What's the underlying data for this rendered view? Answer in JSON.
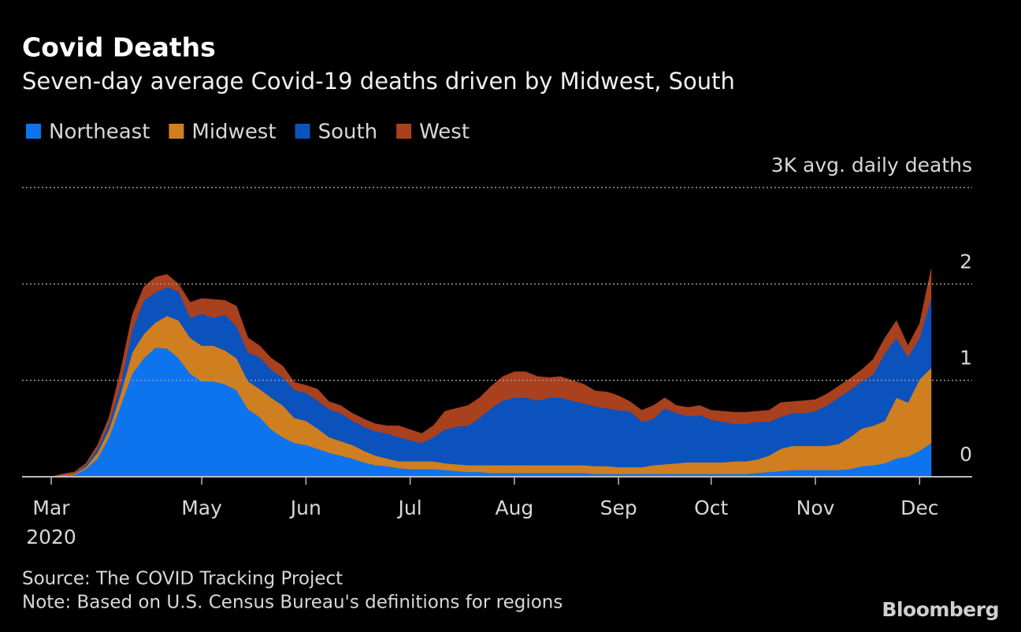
{
  "chart_data": {
    "type": "stacked_area",
    "title": "Covid Deaths",
    "subtitle": "Seven-day average Covid-19 deaths driven by Midwest, South",
    "categories": [
      "Mar",
      null,
      null,
      null,
      null,
      null,
      null,
      null,
      null,
      null,
      null,
      null,
      null,
      "May",
      null,
      null,
      null,
      null,
      null,
      null,
      null,
      null,
      "Jun",
      null,
      null,
      null,
      null,
      null,
      null,
      null,
      null,
      "Jul",
      null,
      null,
      null,
      null,
      null,
      null,
      null,
      null,
      "Aug",
      null,
      null,
      null,
      null,
      null,
      null,
      null,
      null,
      "Sep",
      null,
      null,
      null,
      null,
      null,
      null,
      null,
      "Oct",
      null,
      null,
      null,
      null,
      null,
      null,
      null,
      null,
      "Nov",
      null,
      null,
      null,
      null,
      null,
      null,
      null,
      null,
      "Dec",
      null
    ],
    "category_year": "2020",
    "series": [
      {
        "name": "Northeast",
        "color": "#0e74ee",
        "values": [
          0,
          0.01,
          0.02,
          0.08,
          0.19,
          0.41,
          0.74,
          1.07,
          1.23,
          1.34,
          1.33,
          1.23,
          1.07,
          0.99,
          0.99,
          0.96,
          0.9,
          0.7,
          0.62,
          0.49,
          0.41,
          0.35,
          0.33,
          0.29,
          0.25,
          0.22,
          0.19,
          0.15,
          0.12,
          0.11,
          0.09,
          0.08,
          0.08,
          0.08,
          0.07,
          0.06,
          0.05,
          0.05,
          0.04,
          0.04,
          0.04,
          0.04,
          0.04,
          0.04,
          0.04,
          0.04,
          0.04,
          0.03,
          0.03,
          0.03,
          0.03,
          0.03,
          0.03,
          0.03,
          0.03,
          0.03,
          0.03,
          0.03,
          0.03,
          0.03,
          0.03,
          0.04,
          0.05,
          0.06,
          0.07,
          0.07,
          0.07,
          0.07,
          0.07,
          0.08,
          0.11,
          0.12,
          0.14,
          0.19,
          0.21,
          0.27,
          0.35
        ]
      },
      {
        "name": "Midwest",
        "color": "#cf7f1f",
        "values": [
          0,
          0.01,
          0.01,
          0.02,
          0.06,
          0.08,
          0.12,
          0.22,
          0.25,
          0.26,
          0.34,
          0.39,
          0.37,
          0.37,
          0.37,
          0.35,
          0.33,
          0.29,
          0.29,
          0.33,
          0.33,
          0.26,
          0.25,
          0.21,
          0.16,
          0.15,
          0.14,
          0.12,
          0.1,
          0.08,
          0.07,
          0.08,
          0.08,
          0.08,
          0.07,
          0.07,
          0.07,
          0.07,
          0.08,
          0.08,
          0.08,
          0.08,
          0.08,
          0.08,
          0.08,
          0.08,
          0.08,
          0.08,
          0.08,
          0.07,
          0.07,
          0.07,
          0.09,
          0.1,
          0.11,
          0.12,
          0.12,
          0.12,
          0.12,
          0.13,
          0.13,
          0.14,
          0.17,
          0.23,
          0.25,
          0.25,
          0.25,
          0.25,
          0.27,
          0.33,
          0.39,
          0.41,
          0.44,
          0.63,
          0.56,
          0.74,
          0.78
        ]
      },
      {
        "name": "South",
        "color": "#0b52bd",
        "values": [
          0,
          0,
          0,
          0.02,
          0.04,
          0.06,
          0.1,
          0.23,
          0.35,
          0.31,
          0.3,
          0.3,
          0.21,
          0.33,
          0.29,
          0.37,
          0.33,
          0.3,
          0.33,
          0.29,
          0.29,
          0.29,
          0.29,
          0.29,
          0.29,
          0.29,
          0.25,
          0.25,
          0.25,
          0.26,
          0.25,
          0.22,
          0.19,
          0.25,
          0.35,
          0.39,
          0.41,
          0.49,
          0.59,
          0.67,
          0.7,
          0.7,
          0.67,
          0.7,
          0.7,
          0.67,
          0.64,
          0.62,
          0.6,
          0.59,
          0.58,
          0.47,
          0.48,
          0.58,
          0.52,
          0.48,
          0.49,
          0.44,
          0.42,
          0.39,
          0.39,
          0.39,
          0.35,
          0.33,
          0.34,
          0.34,
          0.36,
          0.42,
          0.48,
          0.49,
          0.49,
          0.53,
          0.7,
          0.62,
          0.47,
          0.43,
          0.72
        ]
      },
      {
        "name": "West",
        "color": "#a9401e",
        "values": [
          0,
          0.01,
          0.02,
          0.02,
          0.04,
          0.07,
          0.15,
          0.16,
          0.14,
          0.16,
          0.13,
          0.08,
          0.16,
          0.16,
          0.19,
          0.15,
          0.21,
          0.15,
          0.12,
          0.12,
          0.12,
          0.08,
          0.08,
          0.12,
          0.08,
          0.08,
          0.08,
          0.08,
          0.08,
          0.08,
          0.12,
          0.11,
          0.1,
          0.12,
          0.19,
          0.19,
          0.21,
          0.21,
          0.23,
          0.25,
          0.27,
          0.27,
          0.25,
          0.21,
          0.22,
          0.21,
          0.2,
          0.16,
          0.17,
          0.15,
          0.1,
          0.12,
          0.14,
          0.11,
          0.08,
          0.09,
          0.1,
          0.1,
          0.11,
          0.12,
          0.12,
          0.11,
          0.12,
          0.15,
          0.12,
          0.13,
          0.12,
          0.12,
          0.12,
          0.12,
          0.12,
          0.16,
          0.16,
          0.18,
          0.12,
          0.15,
          0.31
        ]
      }
    ],
    "ylim": [
      0,
      3
    ],
    "yticks": [
      0,
      1,
      2,
      {
        "value": 3,
        "label": "3K avg. daily deaths"
      }
    ],
    "grid": true,
    "legend": "top-left",
    "source": "Source: The COVID Tracking Project",
    "note": "Note: Based on U.S. Census Bureau's definitions for regions",
    "logo": "Bloomberg"
  }
}
